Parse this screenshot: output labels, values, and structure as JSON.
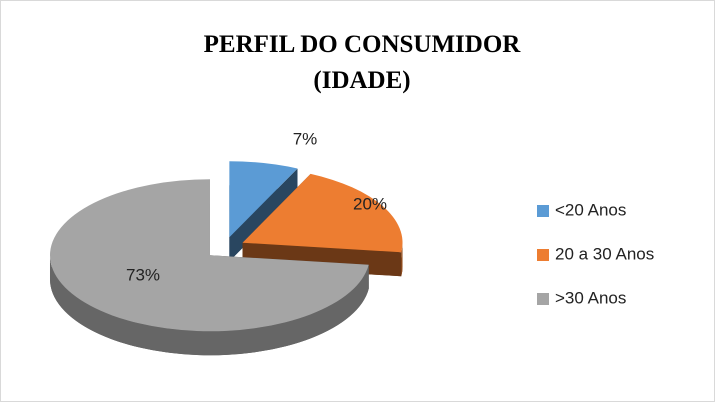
{
  "chart_data": {
    "type": "pie3d",
    "title": [
      "PERFIL DO CONSUMIDOR",
      "(IDADE)"
    ],
    "categories": [
      "<20 Anos",
      "20 a 30 Anos",
      ">30 Anos"
    ],
    "values": [
      7,
      20,
      73
    ],
    "value_labels": [
      "7%",
      "20%",
      "73%"
    ],
    "colors": [
      "#5b9bd5",
      "#ed7d31",
      "#a5a5a5"
    ],
    "legend": "right"
  }
}
